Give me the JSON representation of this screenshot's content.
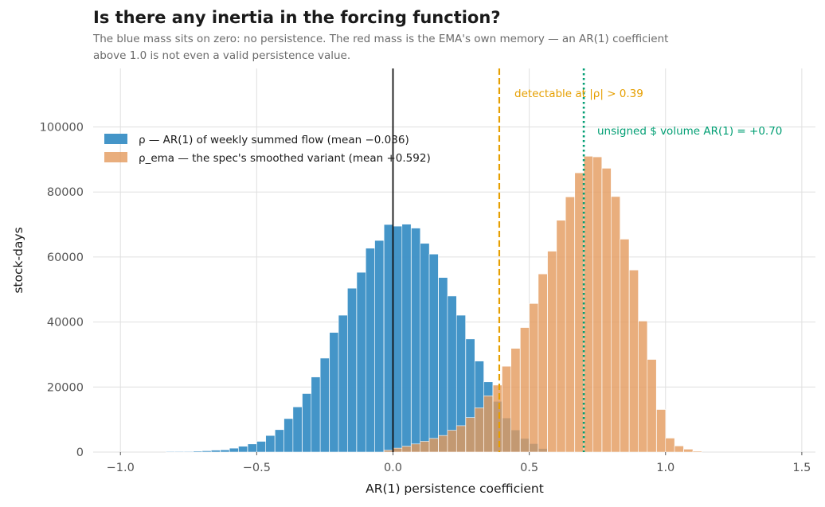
{
  "chart_data": {
    "type": "bar",
    "title": "Is there any inertia in the forcing function?",
    "subtitle_lines": [
      "The blue mass sits on zero: no persistence. The red mass is the EMA's own memory — an AR(1) coefficient",
      "above 1.0 is not even a valid persistence value."
    ],
    "xlabel": "AR(1) persistence coefficient",
    "ylabel": "stock-days",
    "xlim": [
      -1.1,
      1.55
    ],
    "ylim": [
      0,
      118000
    ],
    "xticks": [
      -1.0,
      -0.5,
      0.0,
      0.5,
      1.0,
      1.5
    ],
    "xtick_labels": [
      "−1.0",
      "−0.5",
      "0.0",
      "0.5",
      "1.0",
      "1.5"
    ],
    "yticks": [
      0,
      20000,
      40000,
      60000,
      80000,
      100000
    ],
    "ytick_labels": [
      "0",
      "20000",
      "40000",
      "60000",
      "80000",
      "100000"
    ],
    "grid": true,
    "legend_position": "upper-left",
    "bin_width": 0.0333,
    "series": [
      {
        "name": "ρ — AR(1) of weekly summed flow  (mean −0.036)",
        "color": "#3a8fc5",
        "opacity": 0.95,
        "bin_starts": [
          -0.833,
          -0.8,
          -0.767,
          -0.733,
          -0.7,
          -0.667,
          -0.633,
          -0.6,
          -0.567,
          -0.533,
          -0.5,
          -0.467,
          -0.433,
          -0.4,
          -0.367,
          -0.333,
          -0.3,
          -0.267,
          -0.233,
          -0.2,
          -0.167,
          -0.133,
          -0.1,
          -0.067,
          -0.033,
          0.0,
          0.033,
          0.067,
          0.1,
          0.133,
          0.167,
          0.2,
          0.233,
          0.267,
          0.3,
          0.333,
          0.367,
          0.4,
          0.433,
          0.467,
          0.5,
          0.533
        ],
        "values": [
          200,
          200,
          200,
          300,
          400,
          600,
          700,
          1200,
          1800,
          2500,
          3300,
          5100,
          6900,
          10300,
          13900,
          18000,
          23100,
          28900,
          36800,
          42100,
          50400,
          55300,
          62700,
          65100,
          70000,
          69500,
          70100,
          68900,
          64200,
          60900,
          53700,
          48000,
          42100,
          34800,
          28000,
          21600,
          15600,
          10500,
          6800,
          4200,
          2600,
          1100
        ]
      },
      {
        "name": "ρ_ema — the spec's smoothed variant  (mean +0.592)",
        "color": "#e39a5c",
        "opacity": 0.8,
        "bin_starts": [
          -0.033,
          0.0,
          0.033,
          0.067,
          0.1,
          0.133,
          0.167,
          0.2,
          0.233,
          0.267,
          0.3,
          0.333,
          0.367,
          0.4,
          0.433,
          0.467,
          0.5,
          0.533,
          0.567,
          0.6,
          0.633,
          0.667,
          0.7,
          0.733,
          0.767,
          0.8,
          0.833,
          0.867,
          0.9,
          0.933,
          0.967,
          1.0,
          1.033,
          1.067,
          1.1
        ],
        "values": [
          600,
          1200,
          1800,
          2500,
          3300,
          4200,
          5100,
          6700,
          8100,
          10600,
          13600,
          17300,
          20600,
          26400,
          31900,
          38300,
          45700,
          54800,
          61800,
          71300,
          78500,
          85900,
          91000,
          90800,
          87300,
          78600,
          65500,
          56000,
          40300,
          28500,
          13100,
          4300,
          1900,
          900,
          300
        ]
      }
    ],
    "reference_lines": [
      {
        "x": 0.0,
        "color": "#111111",
        "style": "solid"
      },
      {
        "x": 0.39,
        "color": "#e69f00",
        "style": "dashed",
        "label": "detectable at |ρ| > 0.39"
      },
      {
        "x": 0.7,
        "color": "#009e73",
        "style": "dotted",
        "label": "unsigned $ volume AR(1) = +0.70"
      }
    ]
  }
}
